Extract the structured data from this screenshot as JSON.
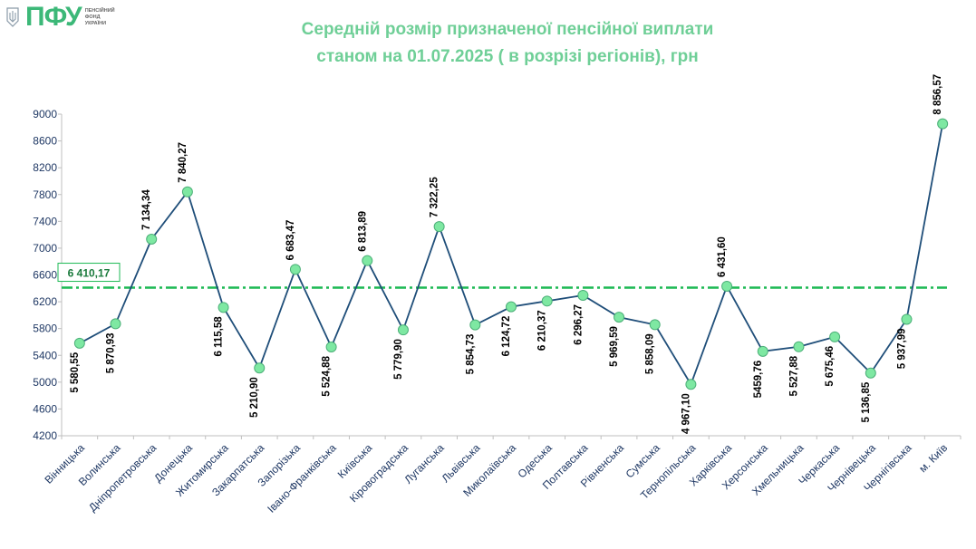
{
  "header": {
    "logo_text": "ПФУ",
    "logo_sub": [
      "ПЕНСІЙНИЙ",
      "ФОНД",
      "УКРАЇНИ"
    ]
  },
  "chart_data": {
    "type": "line",
    "title_lines": [
      "Середній розмір призначеної пенсійної виплати",
      "станом на 01.07.2025 ( в розрізі регіонів), грн"
    ],
    "xlabel": "",
    "ylabel": "",
    "ylim": [
      4200,
      9000
    ],
    "yticks": [
      4200,
      4600,
      5000,
      5400,
      5800,
      6200,
      6600,
      7000,
      7400,
      7800,
      8200,
      8600,
      9000
    ],
    "categories": [
      "Вінницька",
      "Волинська",
      "Дніпропетровська",
      "Донецька",
      "Житомирська",
      "Закарпатська",
      "Запорізька",
      "Івано-Франківська",
      "Київська",
      "Кіровоградська",
      "Луганська",
      "Львівська",
      "Миколаївська",
      "Одеська",
      "Полтавська",
      "Рівненська",
      "Сумська",
      "Тернопільська",
      "Харківська",
      "Херсонська",
      "Хмельницька",
      "Черкаська",
      "Чернівецька",
      "Чернігівська",
      "м. Київ"
    ],
    "series": [
      {
        "values": [
          5580.55,
          5870.93,
          7134.34,
          7840.27,
          6115.58,
          5210.9,
          6683.47,
          5524.88,
          6813.89,
          5779.9,
          7322.25,
          5854.73,
          6124.72,
          6210.37,
          6296.27,
          5969.59,
          5858.09,
          4967.1,
          6431.6,
          5459.76,
          5527.88,
          5675.46,
          5136.85,
          5937.99,
          8856.57
        ],
        "labels": [
          "5 580,55",
          "5 870,93",
          "7 134,34",
          "7 840,27",
          "6 115,58",
          "5 210,90",
          "6 683,47",
          "5 524,88",
          "6 813,89",
          "5 779,90",
          "7 322,25",
          "5 854,73",
          "6 124,72",
          "6 210,37",
          "6 296,27",
          "5 969,59",
          "5 858,09",
          "4 967,10",
          "6 431,60",
          "5459,76",
          "5 527,88",
          "5 675,46",
          "5 136,85",
          "5 937,99",
          "8 856,57"
        ],
        "label_pos": [
          "below",
          "below",
          "above",
          "above",
          "below",
          "below",
          "above",
          "below",
          "above",
          "below",
          "above",
          "below",
          "below",
          "below",
          "below",
          "below",
          "below",
          "below",
          "above",
          "below",
          "below",
          "below",
          "below",
          "below",
          "above"
        ],
        "line_color": "#1f4e79",
        "marker_color": "#7ee8a2"
      }
    ],
    "average": {
      "value": 6410.17,
      "label": "6 410,17",
      "color": "#1db954"
    },
    "grid": false,
    "legend": "none"
  }
}
